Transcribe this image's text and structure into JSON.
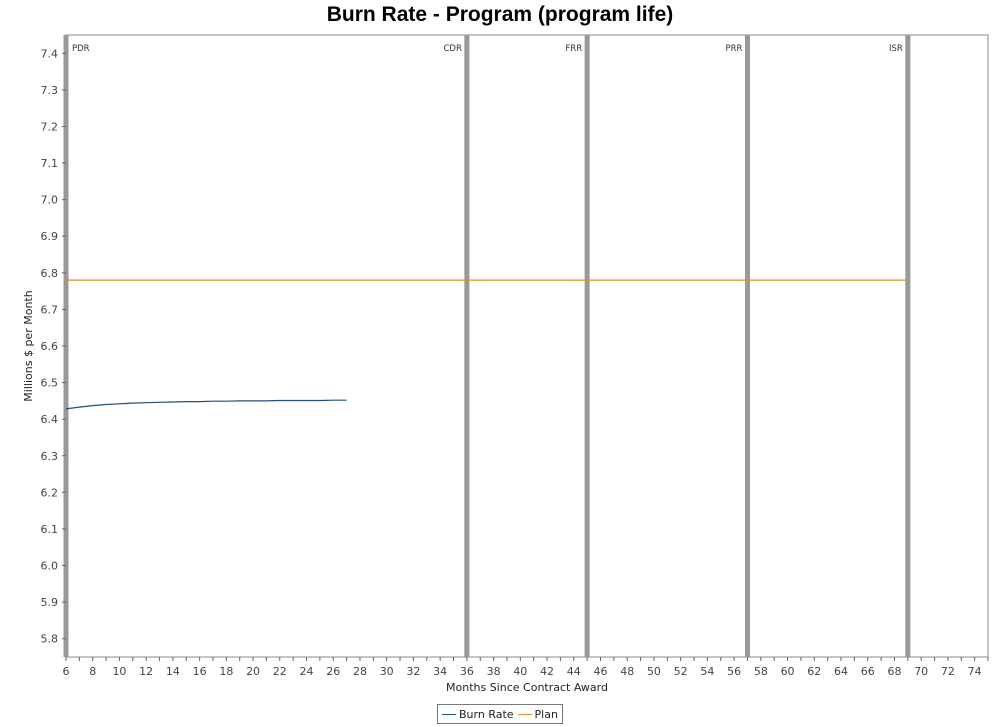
{
  "chart_data": {
    "type": "line",
    "title": "Burn Rate - Program (program life)",
    "xlabel": "Months Since Contract Award",
    "ylabel": "Millions $ per Month",
    "xlim": [
      6,
      75
    ],
    "ylim": [
      5.75,
      7.45
    ],
    "x_ticks": [
      6,
      8,
      10,
      12,
      14,
      16,
      18,
      20,
      22,
      24,
      26,
      28,
      30,
      32,
      34,
      36,
      38,
      40,
      42,
      44,
      46,
      48,
      50,
      52,
      54,
      56,
      58,
      60,
      62,
      64,
      66,
      68,
      70,
      72,
      74
    ],
    "y_ticks": [
      5.8,
      5.9,
      6.0,
      6.1,
      6.2,
      6.3,
      6.4,
      6.5,
      6.6,
      6.7,
      6.8,
      6.9,
      7.0,
      7.1,
      7.2,
      7.3,
      7.4
    ],
    "grid": false,
    "legend_position": "bottom-center",
    "milestones": [
      {
        "label": "PDR",
        "x": 6
      },
      {
        "label": "CDR",
        "x": 36
      },
      {
        "label": "FRR",
        "x": 45
      },
      {
        "label": "PRR",
        "x": 57
      },
      {
        "label": "ISR",
        "x": 69
      }
    ],
    "series": [
      {
        "name": "Burn Rate",
        "color": "#1f4e79",
        "x": [
          6,
          7,
          8,
          9,
          10,
          11,
          12,
          13,
          14,
          15,
          16,
          17,
          18,
          19,
          20,
          21,
          22,
          23,
          24,
          25,
          26,
          27
        ],
        "y": [
          6.428,
          6.433,
          6.437,
          6.44,
          6.442,
          6.444,
          6.445,
          6.446,
          6.447,
          6.448,
          6.448,
          6.449,
          6.449,
          6.45,
          6.45,
          6.45,
          6.451,
          6.451,
          6.451,
          6.451,
          6.452,
          6.452
        ]
      },
      {
        "name": "Plan",
        "color": "#d9902a",
        "x": [
          6,
          69
        ],
        "y": [
          6.78,
          6.78
        ]
      }
    ]
  }
}
